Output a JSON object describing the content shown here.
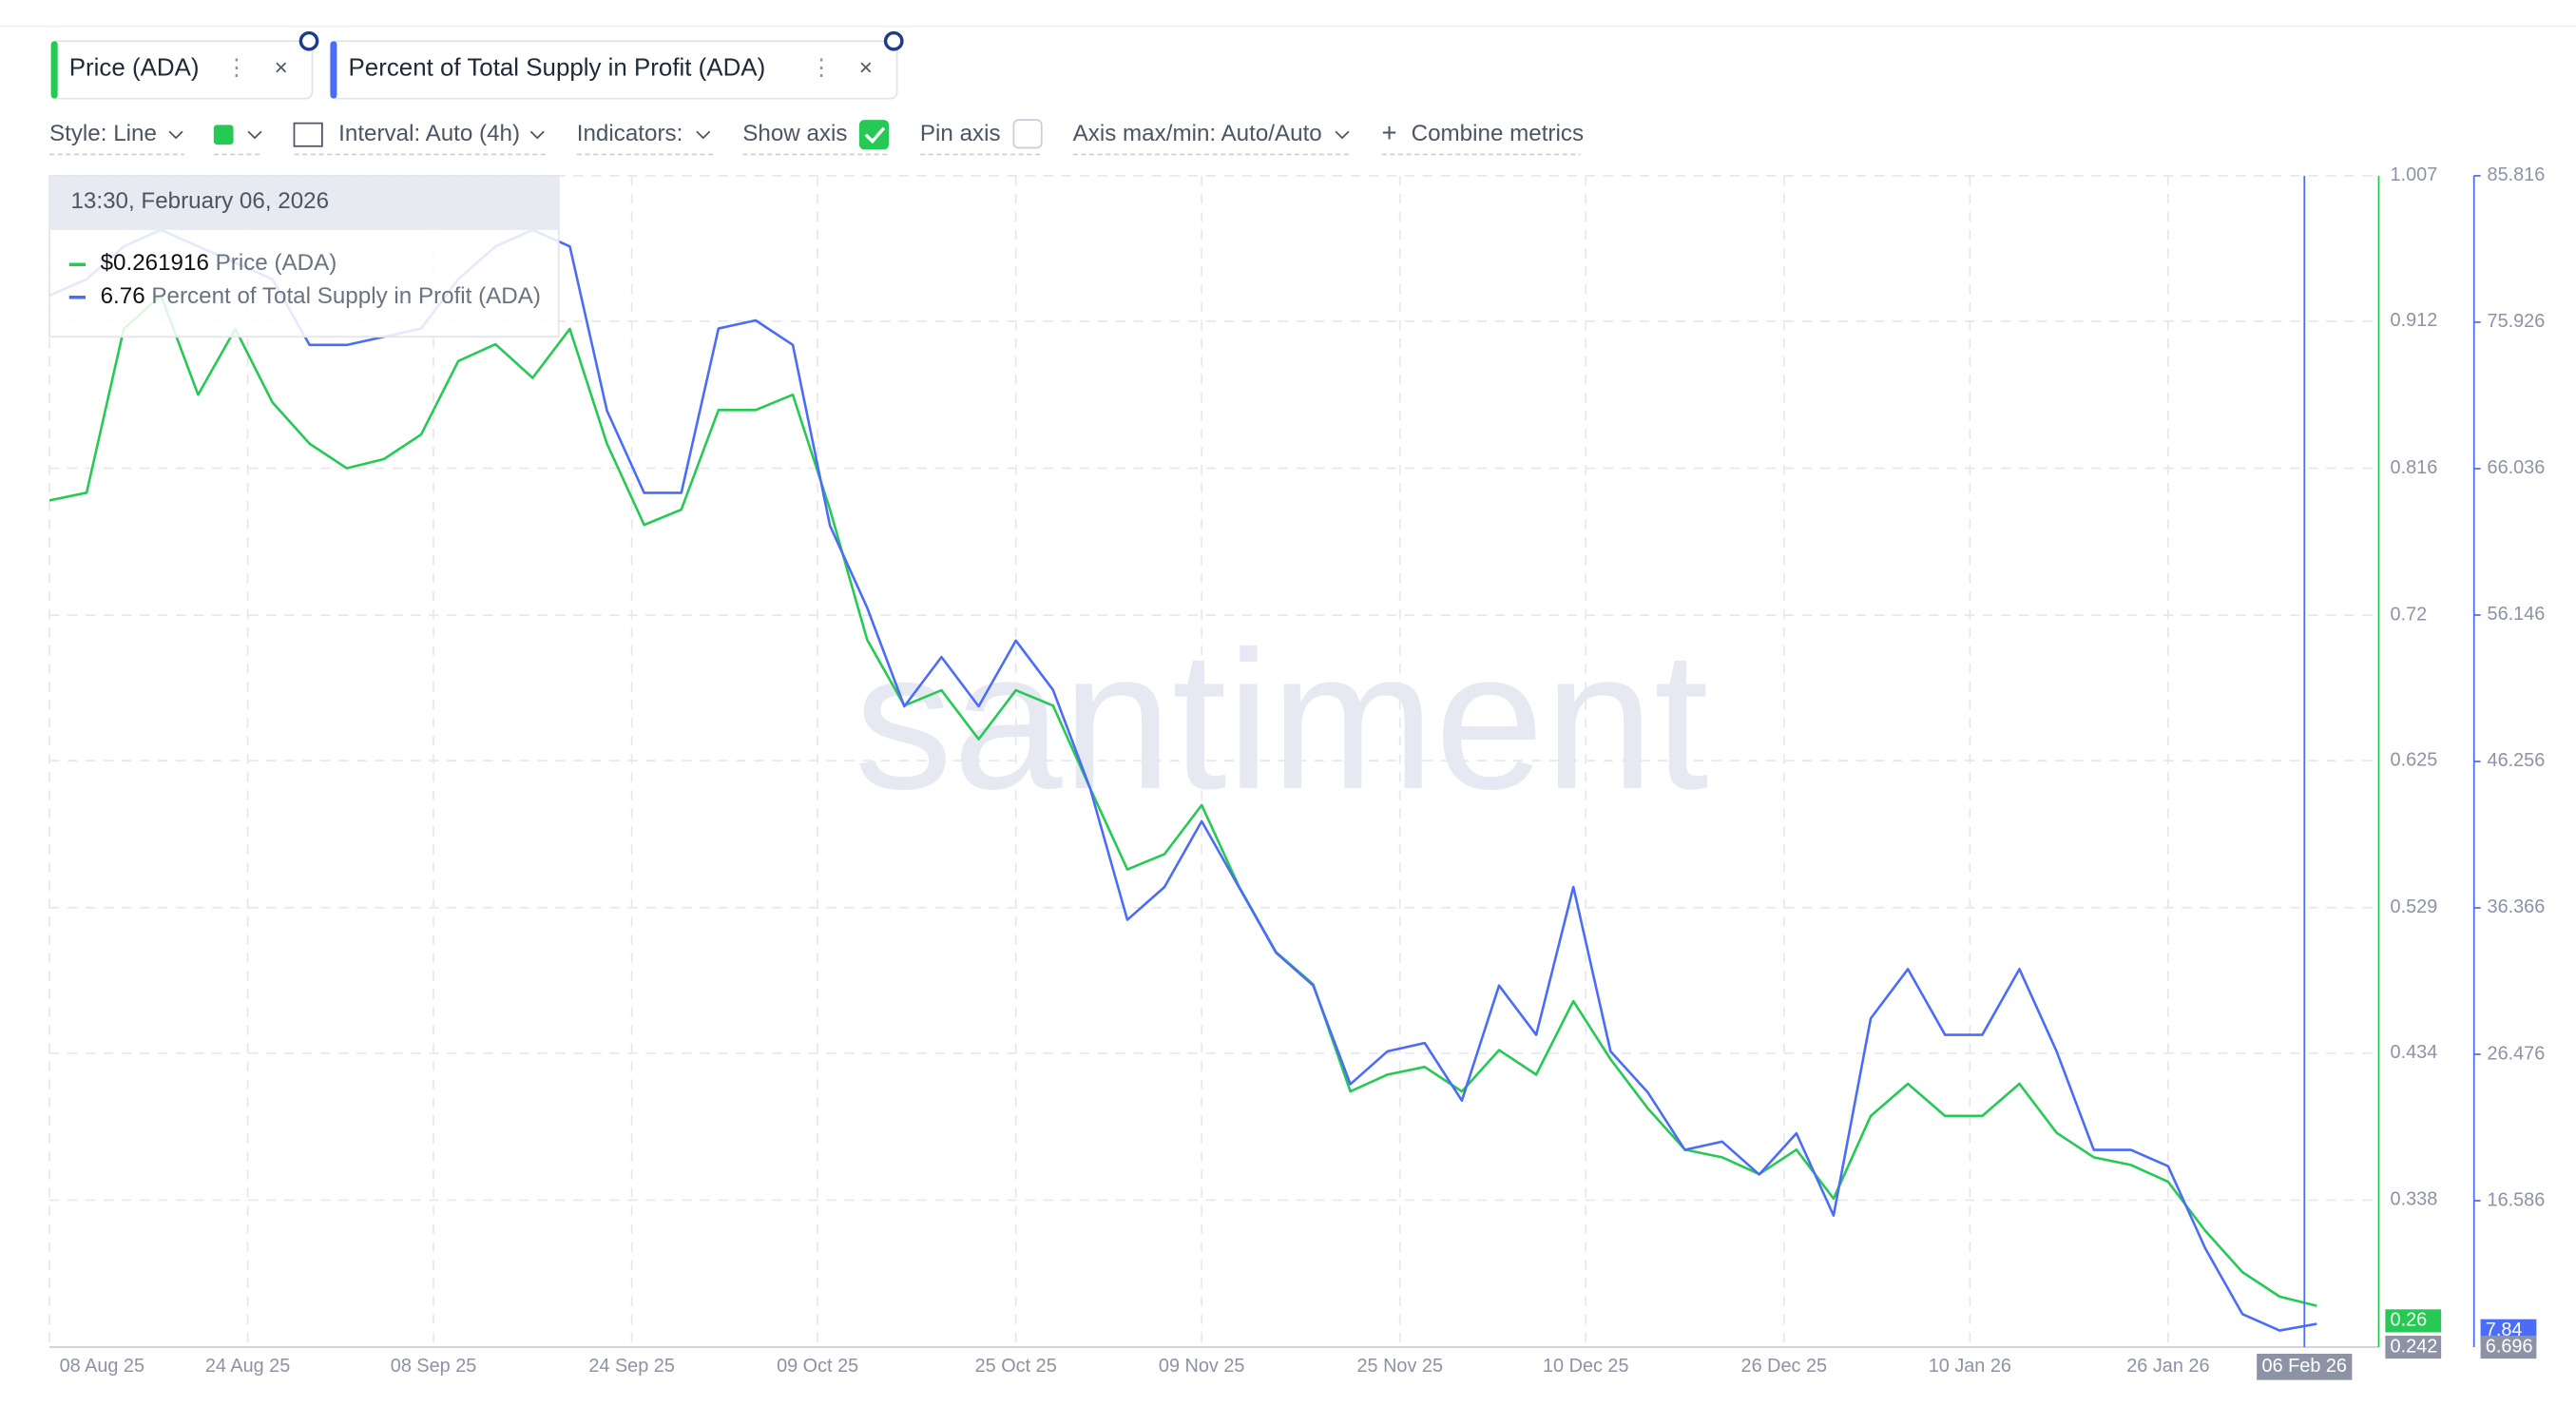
{
  "ui": {
    "tabs": [
      "Price (ADA)",
      "Percent of Total Supply in Profit (ADA)"
    ],
    "toolbar": {
      "style": "Style: Line",
      "interval": "Interval: Auto (4h)",
      "indicators": "Indicators:",
      "show_axis": "Show axis",
      "pin_axis": "Pin axis",
      "axis_minmax": "Axis max/min: Auto/Auto",
      "combine": "Combine metrics"
    },
    "tooltip": {
      "time": "13:30, February 06, 2026",
      "rows": [
        {
          "value": "$0.261916",
          "name": "Price (ADA)"
        },
        {
          "value": "6.76",
          "name": "Percent of Total Supply in Profit (ADA)"
        }
      ]
    },
    "badges": {
      "price_current": "0.26",
      "percent_current": "7.84",
      "crosshair_date": "06 Feb 26"
    },
    "watermark": "santiment"
  },
  "chart_data": {
    "type": "line",
    "x": [
      "2025-08-08",
      "2025-08-11",
      "2025-08-14",
      "2025-08-17",
      "2025-08-20",
      "2025-08-23",
      "2025-08-26",
      "2025-08-29",
      "2025-09-01",
      "2025-09-04",
      "2025-09-07",
      "2025-09-10",
      "2025-09-13",
      "2025-09-16",
      "2025-09-19",
      "2025-09-22",
      "2025-09-25",
      "2025-09-28",
      "2025-10-01",
      "2025-10-04",
      "2025-10-07",
      "2025-10-10",
      "2025-10-13",
      "2025-10-16",
      "2025-10-19",
      "2025-10-22",
      "2025-10-25",
      "2025-10-28",
      "2025-10-31",
      "2025-11-03",
      "2025-11-06",
      "2025-11-09",
      "2025-11-12",
      "2025-11-15",
      "2025-11-18",
      "2025-11-21",
      "2025-11-24",
      "2025-11-27",
      "2025-11-30",
      "2025-12-03",
      "2025-12-06",
      "2025-12-09",
      "2025-12-12",
      "2025-12-15",
      "2025-12-18",
      "2025-12-21",
      "2025-12-24",
      "2025-12-27",
      "2025-12-30",
      "2026-01-02",
      "2026-01-05",
      "2026-01-08",
      "2026-01-11",
      "2026-01-14",
      "2026-01-17",
      "2026-01-20",
      "2026-01-23",
      "2026-01-26",
      "2026-01-29",
      "2026-02-01",
      "2026-02-04",
      "2026-02-07"
    ],
    "series": [
      {
        "name": "Price (ADA)",
        "color": "#26c953",
        "axis": "y",
        "values": [
          0.795,
          0.8,
          0.907,
          0.929,
          0.864,
          0.907,
          0.859,
          0.832,
          0.816,
          0.822,
          0.838,
          0.886,
          0.897,
          0.875,
          0.907,
          0.832,
          0.779,
          0.789,
          0.854,
          0.854,
          0.864,
          0.789,
          0.704,
          0.661,
          0.671,
          0.639,
          0.671,
          0.661,
          0.607,
          0.554,
          0.564,
          0.596,
          0.543,
          0.5,
          0.479,
          0.409,
          0.42,
          0.425,
          0.409,
          0.436,
          0.42,
          0.468,
          0.43,
          0.398,
          0.371,
          0.366,
          0.355,
          0.371,
          0.339,
          0.393,
          0.414,
          0.393,
          0.393,
          0.414,
          0.382,
          0.366,
          0.361,
          0.35,
          0.318,
          0.291,
          0.275,
          0.269
        ]
      },
      {
        "name": "Percent of Total Supply in Profit (ADA)",
        "color": "#4a6cf7",
        "axis": "y2",
        "values": [
          77.72,
          78.83,
          81.05,
          82.16,
          81.05,
          79.94,
          78.83,
          74.39,
          74.39,
          74.94,
          75.5,
          78.83,
          81.05,
          82.16,
          81.05,
          69.95,
          64.4,
          64.4,
          75.5,
          76.05,
          74.39,
          62.18,
          56.64,
          49.98,
          53.31,
          49.98,
          54.42,
          51.09,
          44.43,
          35.56,
          37.78,
          42.22,
          37.78,
          33.34,
          31.12,
          24.46,
          26.68,
          27.24,
          23.35,
          31.12,
          27.79,
          37.78,
          26.68,
          23.91,
          20.02,
          20.58,
          18.36,
          21.14,
          15.59,
          28.9,
          32.23,
          27.79,
          27.79,
          32.23,
          26.68,
          20.02,
          20.02,
          18.92,
          13.37,
          8.93,
          7.82,
          8.27
        ]
      }
    ],
    "xlim": [
      "2025-08-08",
      "2026-02-12"
    ],
    "xticks": [
      {
        "value": "2025-08-08",
        "label": "08 Aug 25"
      },
      {
        "value": "2025-08-24",
        "label": "24 Aug 25"
      },
      {
        "value": "2025-09-08",
        "label": "08 Sep 25"
      },
      {
        "value": "2025-09-24",
        "label": "24 Sep 25"
      },
      {
        "value": "2025-10-09",
        "label": "09 Oct 25"
      },
      {
        "value": "2025-10-25",
        "label": "25 Oct 25"
      },
      {
        "value": "2025-11-09",
        "label": "09 Nov 25"
      },
      {
        "value": "2025-11-25",
        "label": "25 Nov 25"
      },
      {
        "value": "2025-12-10",
        "label": "10 Dec 25"
      },
      {
        "value": "2025-12-26",
        "label": "26 Dec 25"
      },
      {
        "value": "2026-01-10",
        "label": "10 Jan 26"
      },
      {
        "value": "2026-01-26",
        "label": "26 Jan 26"
      }
    ],
    "ylim": [
      0.242,
      1.007
    ],
    "yticks": [
      1.007,
      0.912,
      0.816,
      0.72,
      0.625,
      0.529,
      0.434,
      0.338
    ],
    "y2lim": [
      6.696,
      85.816
    ],
    "y2ticks": [
      85.816,
      75.926,
      66.036,
      56.146,
      46.256,
      36.366,
      26.476,
      16.586
    ],
    "crosshair_x": "2026-02-06",
    "grid": true
  }
}
